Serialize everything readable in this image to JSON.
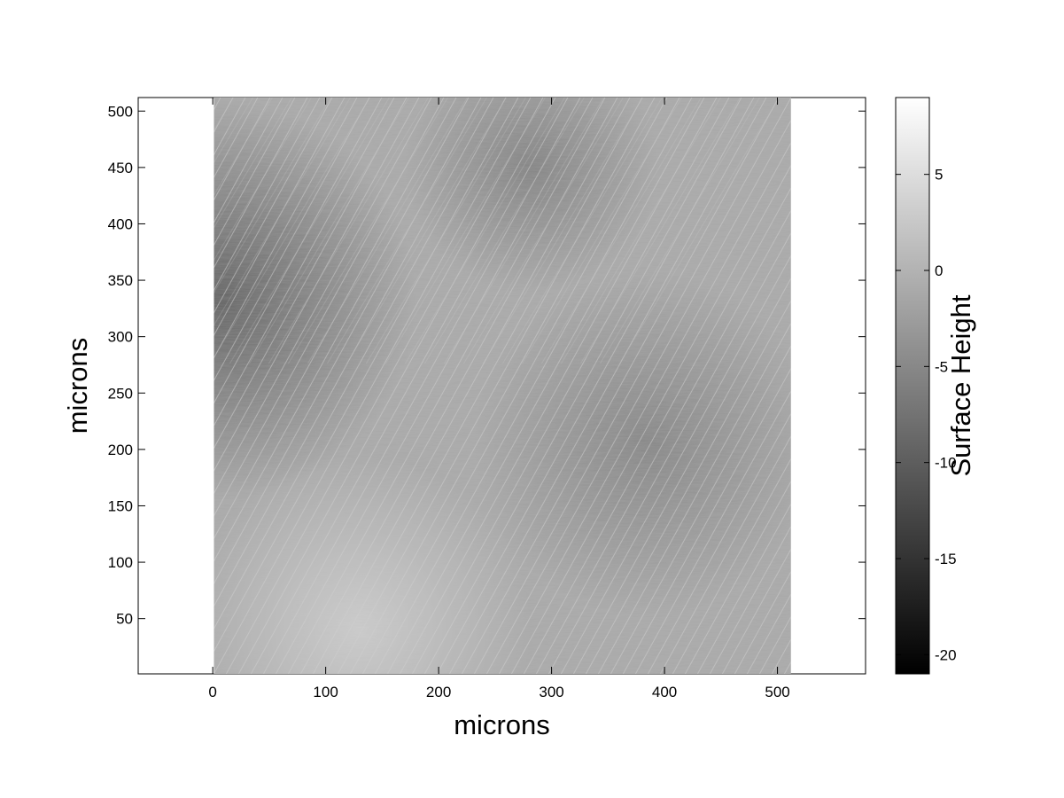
{
  "chart_data": {
    "type": "heatmap",
    "title": "",
    "xlabel": "microns",
    "ylabel": "microns",
    "colorbar_label": "Surface Height",
    "colormap": "gray",
    "xlim": [
      -66,
      578
    ],
    "ylim": [
      1,
      512
    ],
    "image_extent": {
      "x": [
        1,
        512
      ],
      "y": [
        1,
        512
      ]
    },
    "x_ticks": [
      0,
      100,
      200,
      300,
      400,
      500
    ],
    "y_ticks": [
      50,
      100,
      150,
      200,
      250,
      300,
      350,
      400,
      450,
      500
    ],
    "colorbar_range": [
      -21,
      9
    ],
    "colorbar_ticks": [
      -20,
      -15,
      -10,
      -5,
      0,
      5
    ],
    "grid": false
  }
}
